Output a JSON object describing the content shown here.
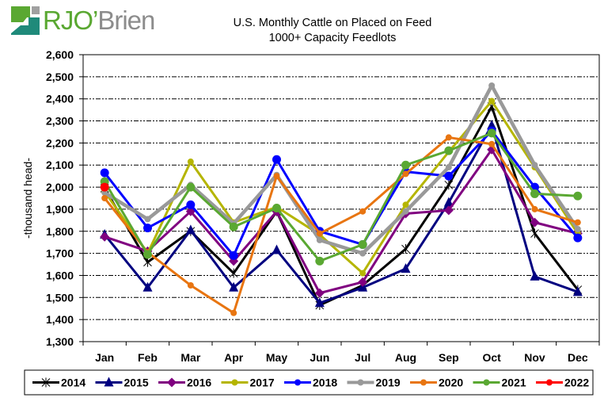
{
  "logo": {
    "text_primary": "RJO",
    "apostrophe": "’",
    "text_secondary": "Brien",
    "colors": {
      "green": "#5aa832",
      "teal": "#1f8a7a",
      "gray": "#8c8c8c"
    }
  },
  "chart_data": {
    "type": "line",
    "title": "U.S. Monthly Cattle on Placed on Feed",
    "subtitle": "1000+ Capacity Feedlots",
    "xlabel": "",
    "ylabel": "-thousand head-",
    "ylim": [
      1300,
      2600
    ],
    "ytick_step": 100,
    "yticks": [
      "1,300",
      "1,400",
      "1,500",
      "1,600",
      "1,700",
      "1,800",
      "1,900",
      "2,000",
      "2,100",
      "2,200",
      "2,300",
      "2,400",
      "2,500",
      "2,600"
    ],
    "categories": [
      "Jan",
      "Feb",
      "Mar",
      "Apr",
      "May",
      "Jun",
      "Jul",
      "Aug",
      "Sep",
      "Oct",
      "Nov",
      "Dec"
    ],
    "grid": "horizontal dash-dot",
    "legend_position": "bottom",
    "series": [
      {
        "name": "2014",
        "color": "#000000",
        "marker": "star",
        "values": [
          1995,
          1660,
          1800,
          1610,
          1890,
          1465,
          1555,
          1720,
          2010,
          2365,
          1790,
          1535
        ]
      },
      {
        "name": "2015",
        "color": "#000080",
        "marker": "triangle",
        "values": [
          1785,
          1545,
          1805,
          1545,
          1715,
          1475,
          1545,
          1630,
          1930,
          2280,
          1595,
          1525
        ]
      },
      {
        "name": "2016",
        "color": "#800080",
        "marker": "diamond",
        "values": [
          1775,
          1710,
          1890,
          1665,
          1890,
          1520,
          1570,
          1880,
          1895,
          2170,
          1840,
          1790
        ]
      },
      {
        "name": "2017",
        "color": "#b5b500",
        "marker": "dot",
        "values": [
          1980,
          1700,
          2115,
          1840,
          1910,
          1785,
          1610,
          1920,
          2160,
          2390,
          2090,
          1790
        ]
      },
      {
        "name": "2018",
        "color": "#0000ff",
        "marker": "circle",
        "values": [
          2065,
          1815,
          1920,
          1690,
          2125,
          1800,
          1740,
          2070,
          2050,
          2255,
          2000,
          1770
        ]
      },
      {
        "name": "2019",
        "color": "#999999",
        "marker": "dot",
        "values": [
          1975,
          1855,
          2010,
          1835,
          2055,
          1760,
          1700,
          1890,
          2090,
          2460,
          2100,
          1810
        ]
      },
      {
        "name": "2020",
        "color": "#e87511",
        "marker": "dot",
        "values": [
          1950,
          1705,
          1555,
          1430,
          2050,
          1790,
          1890,
          2060,
          2225,
          2195,
          1900,
          1840
        ]
      },
      {
        "name": "2021",
        "color": "#5aa832",
        "marker": "circle",
        "values": [
          2025,
          1695,
          2000,
          1820,
          1905,
          1665,
          1740,
          2100,
          2165,
          2245,
          1970,
          1960
        ]
      },
      {
        "name": "2022",
        "color": "#ff0000",
        "marker": "circle",
        "values": [
          2000,
          null,
          null,
          null,
          null,
          null,
          null,
          null,
          null,
          null,
          null,
          null
        ]
      }
    ]
  }
}
